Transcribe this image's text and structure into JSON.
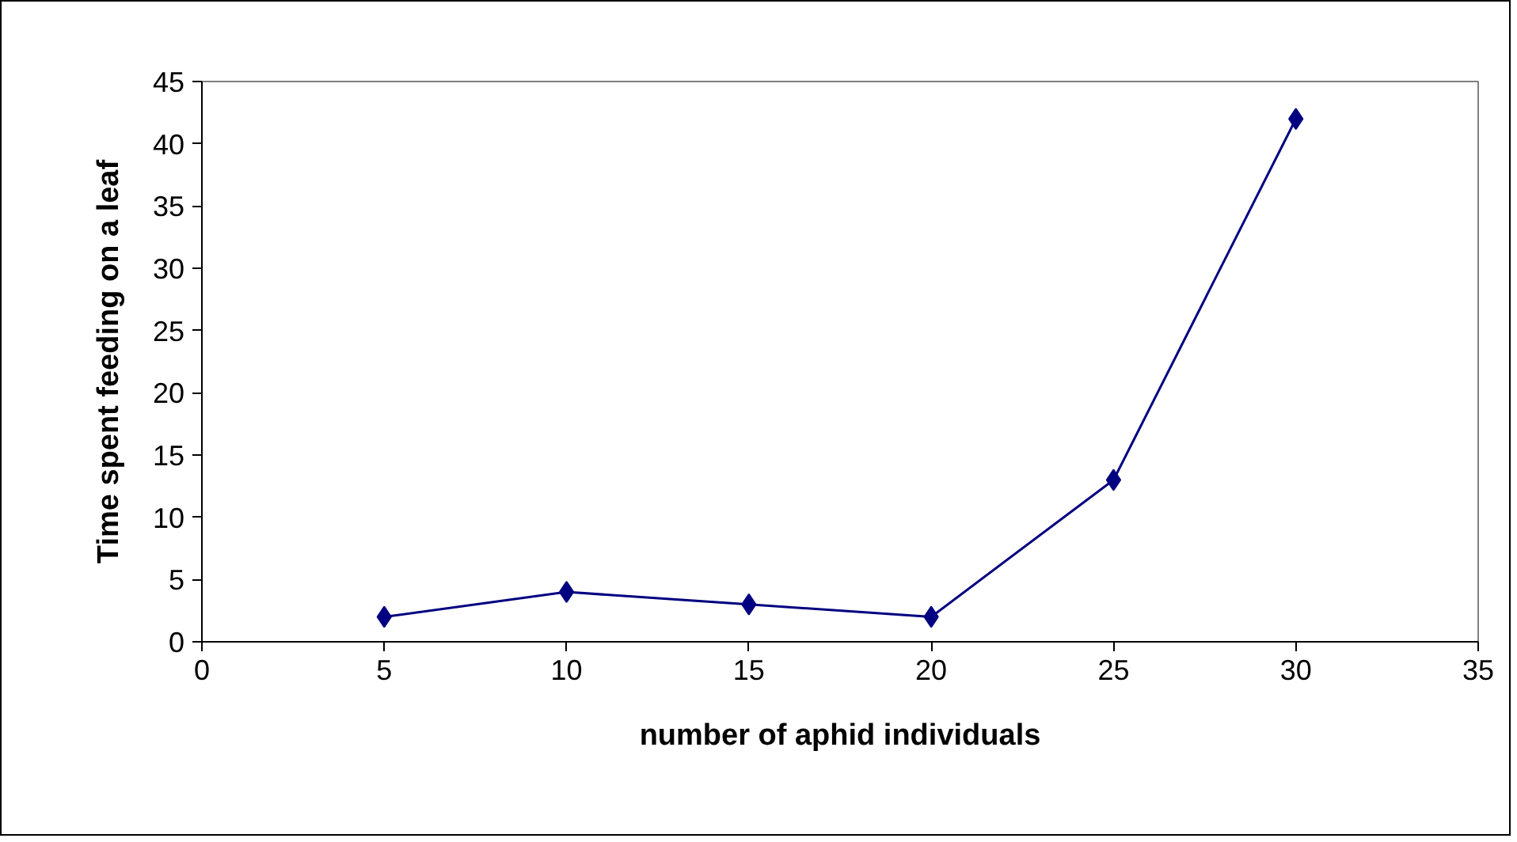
{
  "chart_data": {
    "type": "line",
    "xlabel": "number of aphid individuals",
    "ylabel": "Time spent feeding on a leaf",
    "x": [
      5,
      10,
      15,
      20,
      25,
      30
    ],
    "series": [
      {
        "color": "#000080",
        "values": [
          2,
          4,
          3,
          2,
          13,
          42
        ]
      }
    ],
    "xlim": [
      0,
      35
    ],
    "xticks": [
      0,
      5,
      10,
      15,
      20,
      25,
      30,
      35
    ],
    "ylim": [
      0,
      45
    ],
    "yticks": [
      0,
      5,
      10,
      15,
      20,
      25,
      30,
      35,
      40,
      45
    ],
    "marker": "diamond",
    "line_style": "solid",
    "grid": false
  }
}
